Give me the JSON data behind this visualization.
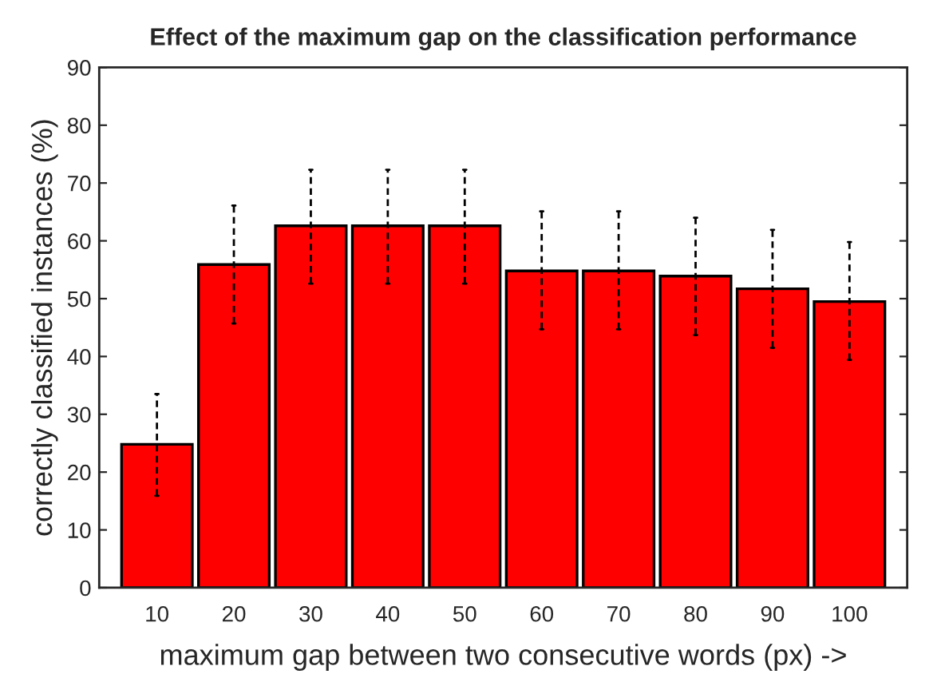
{
  "chart_data": {
    "type": "bar",
    "title": "Effect of the maximum gap on the classification performance",
    "xlabel": "maximum gap between two consecutive words (px) ->",
    "ylabel": "correctly classified instances (%)",
    "categories": [
      "10",
      "20",
      "30",
      "40",
      "50",
      "60",
      "70",
      "80",
      "90",
      "100"
    ],
    "values": [
      24.8,
      55.9,
      62.6,
      62.6,
      62.6,
      54.8,
      54.8,
      53.9,
      51.7,
      49.5
    ],
    "errors": [
      [
        15.9,
        33.5
      ],
      [
        45.7,
        66.1
      ],
      [
        52.6,
        72.3
      ],
      [
        52.6,
        72.3
      ],
      [
        52.6,
        72.3
      ],
      [
        44.7,
        65.1
      ],
      [
        44.7,
        65.1
      ],
      [
        43.7,
        64
      ],
      [
        41.5,
        61.9
      ],
      [
        39.4,
        59.8
      ]
    ],
    "color": "#ff0000",
    "ylim": [
      0,
      90
    ],
    "yticks": [
      0,
      10,
      20,
      30,
      40,
      50,
      60,
      70,
      80,
      90
    ],
    "grid": false,
    "legend": false
  }
}
